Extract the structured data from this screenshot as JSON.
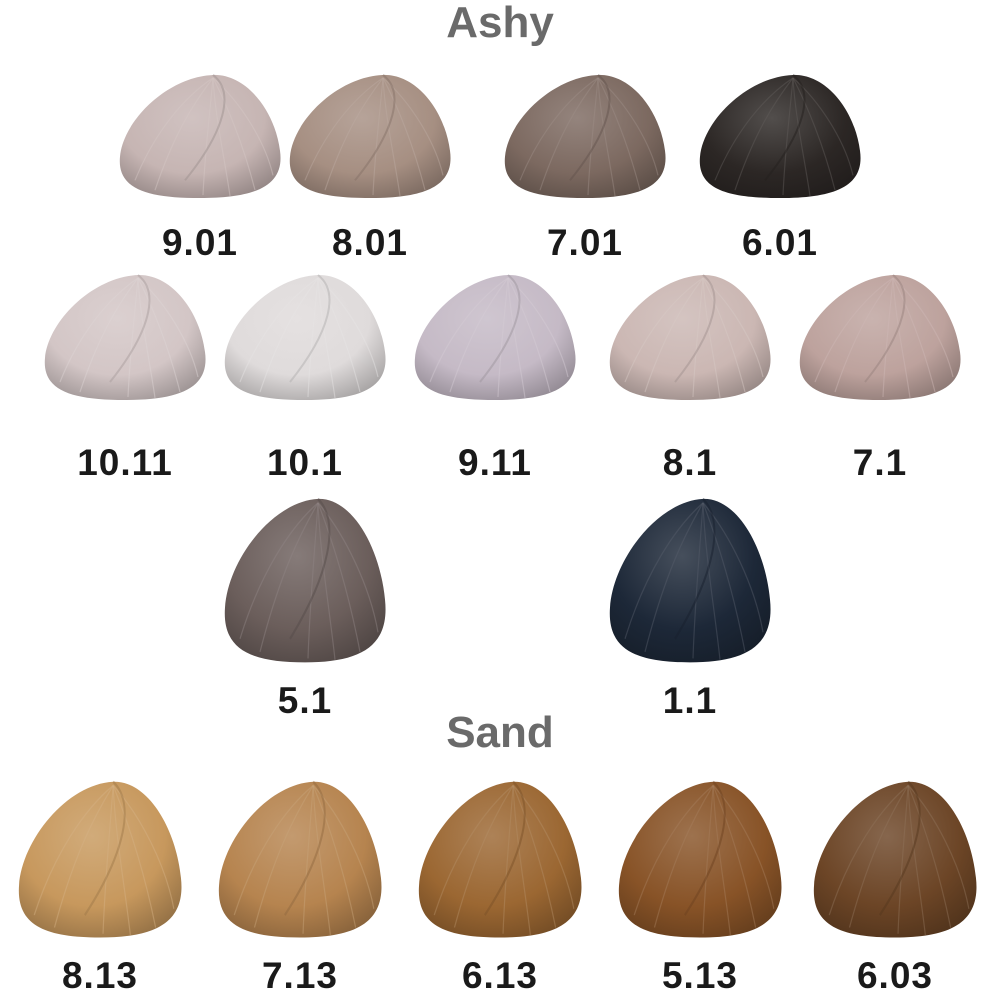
{
  "sections": [
    {
      "title": "Ashy",
      "swatches": [
        {
          "label": "9.01",
          "color": "#c6b5b3"
        },
        {
          "label": "8.01",
          "color": "#a68f82"
        },
        {
          "label": "7.01",
          "color": "#7c6960"
        },
        {
          "label": "6.01",
          "color": "#2c2725"
        },
        {
          "label": "10.11",
          "color": "#d3c6c6"
        },
        {
          "label": "10.1",
          "color": "#dfdbdb"
        },
        {
          "label": "9.11",
          "color": "#c5bac6"
        },
        {
          "label": "8.1",
          "color": "#cbb7b3"
        },
        {
          "label": "7.1",
          "color": "#bda29d"
        },
        {
          "label": "5.1",
          "color": "#6b5e5b"
        },
        {
          "label": "1.1",
          "color": "#1d2838"
        }
      ]
    },
    {
      "title": "Sand",
      "swatches": [
        {
          "label": "8.13",
          "color": "#c7985d"
        },
        {
          "label": "7.13",
          "color": "#b6844f"
        },
        {
          "label": "6.13",
          "color": "#9b6732"
        },
        {
          "label": "5.13",
          "color": "#885327"
        },
        {
          "label": "6.03",
          "color": "#6c4526"
        }
      ]
    }
  ]
}
